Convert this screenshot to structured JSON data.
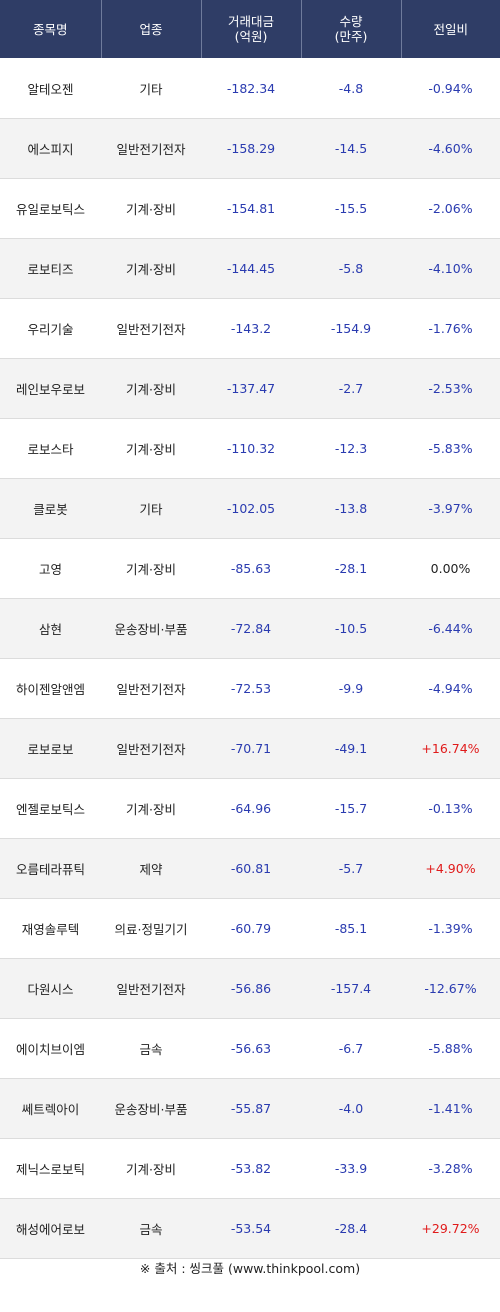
{
  "header": {
    "col_name": "종목명",
    "col_sector": "업종",
    "col_amount_l1": "거래대금",
    "col_amount_l2": "(억원)",
    "col_volume_l1": "수량",
    "col_volume_l2": "(만주)",
    "col_change": "전일비"
  },
  "rows": [
    {
      "name": "알테오젠",
      "sector": "기타",
      "amount": "-182.34",
      "volume": "-4.8",
      "change": "-0.94%"
    },
    {
      "name": "에스피지",
      "sector": "일반전기전자",
      "amount": "-158.29",
      "volume": "-14.5",
      "change": "-4.60%"
    },
    {
      "name": "유일로보틱스",
      "sector": "기계·장비",
      "amount": "-154.81",
      "volume": "-15.5",
      "change": "-2.06%"
    },
    {
      "name": "로보티즈",
      "sector": "기계·장비",
      "amount": "-144.45",
      "volume": "-5.8",
      "change": "-4.10%"
    },
    {
      "name": "우리기술",
      "sector": "일반전기전자",
      "amount": "-143.2",
      "volume": "-154.9",
      "change": "-1.76%"
    },
    {
      "name": "레인보우로보",
      "sector": "기계·장비",
      "amount": "-137.47",
      "volume": "-2.7",
      "change": "-2.53%"
    },
    {
      "name": "로보스타",
      "sector": "기계·장비",
      "amount": "-110.32",
      "volume": "-12.3",
      "change": "-5.83%"
    },
    {
      "name": "클로봇",
      "sector": "기타",
      "amount": "-102.05",
      "volume": "-13.8",
      "change": "-3.97%"
    },
    {
      "name": "고영",
      "sector": "기계·장비",
      "amount": "-85.63",
      "volume": "-28.1",
      "change": "0.00%"
    },
    {
      "name": "삼현",
      "sector": "운송장비·부품",
      "amount": "-72.84",
      "volume": "-10.5",
      "change": "-6.44%"
    },
    {
      "name": "하이젠알앤엠",
      "sector": "일반전기전자",
      "amount": "-72.53",
      "volume": "-9.9",
      "change": "-4.94%"
    },
    {
      "name": "로보로보",
      "sector": "일반전기전자",
      "amount": "-70.71",
      "volume": "-49.1",
      "change": "+16.74%"
    },
    {
      "name": "엔젤로보틱스",
      "sector": "기계·장비",
      "amount": "-64.96",
      "volume": "-15.7",
      "change": "-0.13%"
    },
    {
      "name": "오름테라퓨틱",
      "sector": "제약",
      "amount": "-60.81",
      "volume": "-5.7",
      "change": "+4.90%"
    },
    {
      "name": "재영솔루텍",
      "sector": "의료·정밀기기",
      "amount": "-60.79",
      "volume": "-85.1",
      "change": "-1.39%"
    },
    {
      "name": "다원시스",
      "sector": "일반전기전자",
      "amount": "-56.86",
      "volume": "-157.4",
      "change": "-12.67%"
    },
    {
      "name": "에이치브이엠",
      "sector": "금속",
      "amount": "-56.63",
      "volume": "-6.7",
      "change": "-5.88%"
    },
    {
      "name": "쎄트렉아이",
      "sector": "운송장비·부품",
      "amount": "-55.87",
      "volume": "-4.0",
      "change": "-1.41%"
    },
    {
      "name": "제닉스로보틱",
      "sector": "기계·장비",
      "amount": "-53.82",
      "volume": "-33.9",
      "change": "-3.28%"
    },
    {
      "name": "해성에어로보",
      "sector": "금속",
      "amount": "-53.54",
      "volume": "-28.4",
      "change": "+29.72%"
    }
  ],
  "source": "※ 출처 : 씽크풀 (www.thinkpool.com)",
  "colors": {
    "header_bg": "#2f3d66",
    "negative": "#2a3bb0",
    "positive": "#e01b1b",
    "row_alt": "#f3f3f3"
  }
}
